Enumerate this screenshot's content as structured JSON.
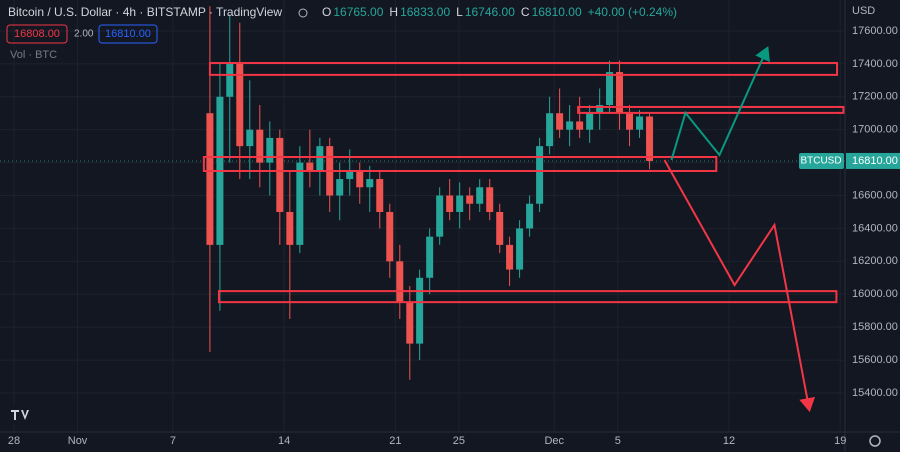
{
  "chart_data": {
    "type": "candlestick",
    "title": "Bitcoin / U.S. Dollar · 4h · BITSTAMP · TradingView",
    "ohlc": [
      {
        "label": "O",
        "value": "16765.00"
      },
      {
        "label": "H",
        "value": "16833.00"
      },
      {
        "label": "L",
        "value": "16746.00"
      },
      {
        "label": "C",
        "value": "16810.00"
      }
    ],
    "change": "+40.00 (+0.24%)",
    "bid": "16808.00",
    "spread": "2.00",
    "ask": "16810.00",
    "volume_label": "Vol · BTC",
    "currency": "USD",
    "symbol": "BTCUSD",
    "last_price": {
      "value": 16810,
      "label": "16810.00"
    },
    "up_color": "#26a69a",
    "down_color": "#ef5350",
    "grid": true,
    "x": [
      12.33,
      12.96,
      13.58,
      14.21,
      14.84,
      15.47,
      16.1,
      16.73,
      17.36,
      17.99,
      18.62,
      19.25,
      19.87,
      20.5,
      21.13,
      21.76,
      22.39,
      23.02,
      23.65,
      24.28,
      24.91,
      25.53,
      26.16,
      26.79,
      27.42,
      28.05,
      28.68,
      29.31,
      29.94,
      30.57,
      31.19,
      31.82,
      32.45,
      33.08,
      33.71,
      34.34,
      34.97,
      35.6,
      36.23,
      36.86,
      37.48,
      38.11,
      38.74,
      39.37,
      40.0
    ],
    "open": [
      17100,
      16300,
      17200,
      17400,
      16900,
      17000,
      16800,
      16950,
      16500,
      16300,
      16800,
      16750,
      16900,
      16600,
      16700,
      16750,
      16650,
      16700,
      16500,
      16200,
      15950,
      15700,
      16100,
      16350,
      16600,
      16500,
      16600,
      16550,
      16650,
      16500,
      16300,
      16150,
      16400,
      16550,
      16900,
      17100,
      17000,
      17050,
      17000,
      17100,
      17150,
      17350,
      17100,
      17000,
      17080
    ],
    "high": [
      17750,
      17400,
      17700,
      17650,
      17300,
      17150,
      17050,
      17000,
      16750,
      16900,
      17000,
      16950,
      16950,
      16800,
      16880,
      16800,
      16780,
      16750,
      16550,
      16300,
      16050,
      16150,
      16400,
      16650,
      16700,
      16680,
      16650,
      16700,
      16700,
      16550,
      16350,
      16450,
      16600,
      16950,
      17200,
      17250,
      17150,
      17200,
      17150,
      17250,
      17420,
      17420,
      17150,
      17120,
      17100
    ],
    "low": [
      15650,
      15900,
      16800,
      16700,
      16700,
      16650,
      16600,
      16300,
      15850,
      16250,
      16650,
      16600,
      16500,
      16450,
      16600,
      16550,
      16500,
      16400,
      16100,
      15850,
      15480,
      15600,
      16000,
      16300,
      16450,
      16400,
      16450,
      16500,
      16450,
      16250,
      16050,
      16100,
      16350,
      16500,
      16850,
      16950,
      16900,
      16950,
      16920,
      17000,
      17100,
      17000,
      16900,
      16950,
      16760
    ],
    "close": [
      16300,
      17200,
      17400,
      16900,
      17000,
      16800,
      16950,
      16500,
      16300,
      16800,
      16750,
      16900,
      16600,
      16700,
      16750,
      16650,
      16700,
      16500,
      16200,
      15950,
      15700,
      16100,
      16350,
      16600,
      16500,
      16600,
      16550,
      16650,
      16500,
      16300,
      16150,
      16400,
      16550,
      16900,
      17100,
      17000,
      17050,
      17000,
      17100,
      17150,
      17350,
      17100,
      17000,
      17080,
      16810
    ],
    "zones": [
      {
        "x": [
          12.33,
          51.8
        ],
        "y": [
          17333,
          17405
        ]
      },
      {
        "x": [
          35.5,
          52.2
        ],
        "y": [
          17102,
          17138
        ]
      },
      {
        "x": [
          11.95,
          44.2
        ],
        "y": [
          16749,
          16834
        ]
      },
      {
        "x": [
          12.9,
          51.76
        ],
        "y": [
          15952,
          16019
        ]
      }
    ],
    "zone_color": "#f23645",
    "arrows": [
      {
        "color": "#089981",
        "x": [
          41.38,
          42.26,
          44.4,
          47.42
        ],
        "y": [
          16816,
          17102,
          16846,
          17497
        ]
      },
      {
        "color": "#f23645",
        "x": [
          40.94,
          45.35,
          47.86,
          50.06
        ],
        "y": [
          16816,
          16056,
          16421,
          15296
        ]
      }
    ],
    "xlim": [
      -0.88,
      52.3
    ],
    "ylim": [
      15163,
      17788
    ],
    "xticks": [
      {
        "value": 0,
        "label": "28"
      },
      {
        "value": 4,
        "label": "Nov"
      },
      {
        "value": 10,
        "label": "7"
      },
      {
        "value": 17,
        "label": "14"
      },
      {
        "value": 24,
        "label": "21"
      },
      {
        "value": 28,
        "label": "25"
      },
      {
        "value": 34,
        "label": "Dec"
      },
      {
        "value": 38,
        "label": "5"
      },
      {
        "value": 45,
        "label": "12"
      },
      {
        "value": 52,
        "label": "19"
      }
    ],
    "yticks": [
      {
        "value": 15400,
        "label": "15400.00"
      },
      {
        "value": 15600,
        "label": "15600.00"
      },
      {
        "value": 15800,
        "label": "15800.00"
      },
      {
        "value": 16000,
        "label": "16000.00"
      },
      {
        "value": 16200,
        "label": "16200.00"
      },
      {
        "value": 16400,
        "label": "16400.00"
      },
      {
        "value": 16600,
        "label": "16600.00"
      },
      {
        "value": 16800,
        "label": "16800.00"
      },
      {
        "value": 17000,
        "label": "17000.00"
      },
      {
        "value": 17200,
        "label": "17200.00"
      },
      {
        "value": 17400,
        "label": "17400.00"
      },
      {
        "value": 17600,
        "label": "17600.00"
      }
    ]
  }
}
